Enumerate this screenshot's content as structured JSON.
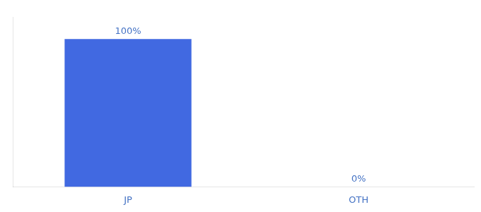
{
  "chart_data": {
    "type": "bar",
    "categories": [
      "JP",
      "OTH"
    ],
    "values": [
      100,
      0
    ],
    "value_labels": [
      "100%",
      "0%"
    ],
    "color": "#4169e1",
    "ylim": [
      0,
      115
    ],
    "data_labels": true,
    "tick_labels": "x",
    "grid": false
  }
}
